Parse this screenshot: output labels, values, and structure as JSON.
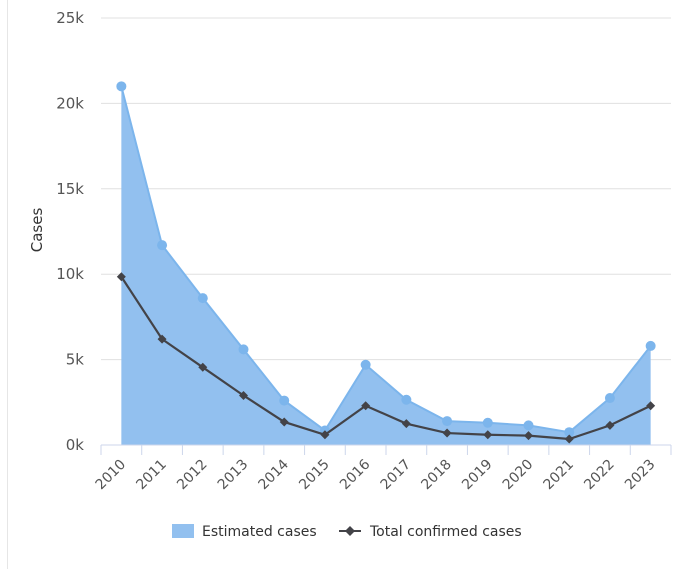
{
  "chart_data": {
    "type": "area",
    "title": "",
    "xlabel": "",
    "ylabel": "Cases",
    "categories": [
      "2010",
      "2011",
      "2012",
      "2013",
      "2014",
      "2015",
      "2016",
      "2017",
      "2018",
      "2019",
      "2020",
      "2021",
      "2022",
      "2023"
    ],
    "y_ticks": [
      "0k",
      "5k",
      "10k",
      "15k",
      "20k",
      "25k"
    ],
    "ylim": [
      0,
      25000
    ],
    "grid": true,
    "legend_position": "bottom-center",
    "series": [
      {
        "name": "Estimated cases",
        "kind": "area",
        "marker": "circle",
        "color": "#7cb5ec",
        "fill_color": "#92c0ef",
        "values": [
          21000,
          11700,
          8600,
          5600,
          2600,
          850,
          4700,
          2650,
          1400,
          1300,
          1150,
          750,
          2750,
          5800
        ]
      },
      {
        "name": "Total confirmed cases",
        "kind": "line",
        "marker": "diamond",
        "color": "#434348",
        "values": [
          9850,
          6200,
          4550,
          2900,
          1350,
          600,
          2300,
          1250,
          700,
          600,
          550,
          350,
          1150,
          2300
        ]
      }
    ]
  }
}
